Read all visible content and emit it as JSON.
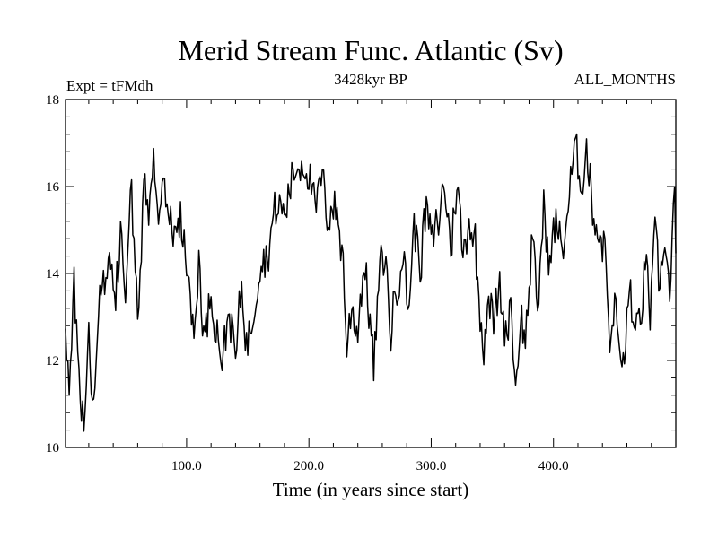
{
  "chart_data": {
    "type": "line",
    "title": "Merid Stream Func. Atlantic (Sv)",
    "subtitle_left": "Expt = tFMdh",
    "subtitle_center": "3428kyr BP",
    "subtitle_right": "ALL_MONTHS",
    "xlabel": "Time (in years since start)",
    "ylabel": "",
    "xlim": [
      1,
      500
    ],
    "ylim": [
      10,
      18
    ],
    "x_ticks": [
      100,
      200,
      300,
      400
    ],
    "x_tick_labels": [
      "100.0",
      "200.0",
      "300.0",
      "400.0"
    ],
    "y_ticks": [
      10,
      12,
      14,
      16,
      18
    ],
    "y_tick_labels": [
      "10",
      "12",
      "14",
      "16",
      "18"
    ],
    "line_color": "#000000",
    "series": [
      {
        "name": "Merid Stream Func. Atlantic",
        "anchors": [
          [
            1,
            12.7
          ],
          [
            4,
            11.5
          ],
          [
            8,
            13.5
          ],
          [
            11,
            12.4
          ],
          [
            14,
            10.9
          ],
          [
            16,
            10.4
          ],
          [
            20,
            13.5
          ],
          [
            23,
            11.0
          ],
          [
            28,
            12.8
          ],
          [
            32,
            14.3
          ],
          [
            35,
            13.3
          ],
          [
            38,
            14.5
          ],
          [
            42,
            13.6
          ],
          [
            46,
            14.8
          ],
          [
            50,
            13.2
          ],
          [
            55,
            15.8
          ],
          [
            60,
            13.3
          ],
          [
            65,
            16.0
          ],
          [
            70,
            15.4
          ],
          [
            73,
            17.4
          ],
          [
            76,
            15.2
          ],
          [
            80,
            16.5
          ],
          [
            85,
            15.6
          ],
          [
            90,
            14.6
          ],
          [
            95,
            15.5
          ],
          [
            100,
            14.0
          ],
          [
            103,
            13.5
          ],
          [
            106,
            12.2
          ],
          [
            110,
            14.4
          ],
          [
            115,
            12.4
          ],
          [
            120,
            13.7
          ],
          [
            125,
            12.8
          ],
          [
            130,
            12.0
          ],
          [
            135,
            13.3
          ],
          [
            140,
            11.9
          ],
          [
            145,
            13.7
          ],
          [
            150,
            12.3
          ],
          [
            155,
            13.4
          ],
          [
            160,
            14.5
          ],
          [
            165,
            14.4
          ],
          [
            170,
            15.1
          ],
          [
            175,
            15.6
          ],
          [
            180,
            15.3
          ],
          [
            185,
            16.1
          ],
          [
            190,
            16.5
          ],
          [
            195,
            16.7
          ],
          [
            200,
            16.5
          ],
          [
            205,
            15.2
          ],
          [
            210,
            16.1
          ],
          [
            215,
            15.4
          ],
          [
            220,
            15.7
          ],
          [
            225,
            15.0
          ],
          [
            228,
            14.3
          ],
          [
            231,
            12.3
          ],
          [
            235,
            13.2
          ],
          [
            240,
            12.8
          ],
          [
            245,
            14.3
          ],
          [
            250,
            13.0
          ],
          [
            253,
            11.7
          ],
          [
            257,
            13.7
          ],
          [
            262,
            14.5
          ],
          [
            267,
            12.7
          ],
          [
            271,
            13.6
          ],
          [
            276,
            14.7
          ],
          [
            281,
            13.2
          ],
          [
            286,
            15.0
          ],
          [
            291,
            14.4
          ],
          [
            296,
            15.4
          ],
          [
            301,
            14.6
          ],
          [
            306,
            15.2
          ],
          [
            311,
            16.1
          ],
          [
            316,
            14.6
          ],
          [
            321,
            16.2
          ],
          [
            326,
            14.3
          ],
          [
            331,
            15.4
          ],
          [
            336,
            14.7
          ],
          [
            339,
            13.3
          ],
          [
            343,
            12.6
          ],
          [
            347,
            13.7
          ],
          [
            351,
            12.8
          ],
          [
            356,
            13.6
          ],
          [
            361,
            12.6
          ],
          [
            365,
            13.6
          ],
          [
            369,
            11.3
          ],
          [
            373,
            13.2
          ],
          [
            377,
            12.4
          ],
          [
            382,
            14.6
          ],
          [
            387,
            13.2
          ],
          [
            392,
            15.5
          ],
          [
            397,
            14.2
          ],
          [
            402,
            15.2
          ],
          [
            407,
            14.5
          ],
          [
            412,
            15.6
          ],
          [
            417,
            16.7
          ],
          [
            422,
            16.2
          ],
          [
            427,
            16.9
          ],
          [
            432,
            15.6
          ],
          [
            437,
            15.0
          ],
          [
            442,
            14.6
          ],
          [
            447,
            12.3
          ],
          [
            451,
            13.4
          ],
          [
            455,
            11.6
          ],
          [
            459,
            12.5
          ],
          [
            463,
            13.7
          ],
          [
            467,
            12.2
          ],
          [
            471,
            13.0
          ],
          [
            475,
            14.3
          ],
          [
            479,
            13.1
          ],
          [
            483,
            14.6
          ],
          [
            487,
            13.5
          ],
          [
            491,
            15.1
          ],
          [
            495,
            13.3
          ],
          [
            499,
            15.6
          ],
          [
            500,
            14.0
          ]
        ],
        "noise_amplitude": 0.55,
        "noise_seed": 3428
      }
    ]
  }
}
